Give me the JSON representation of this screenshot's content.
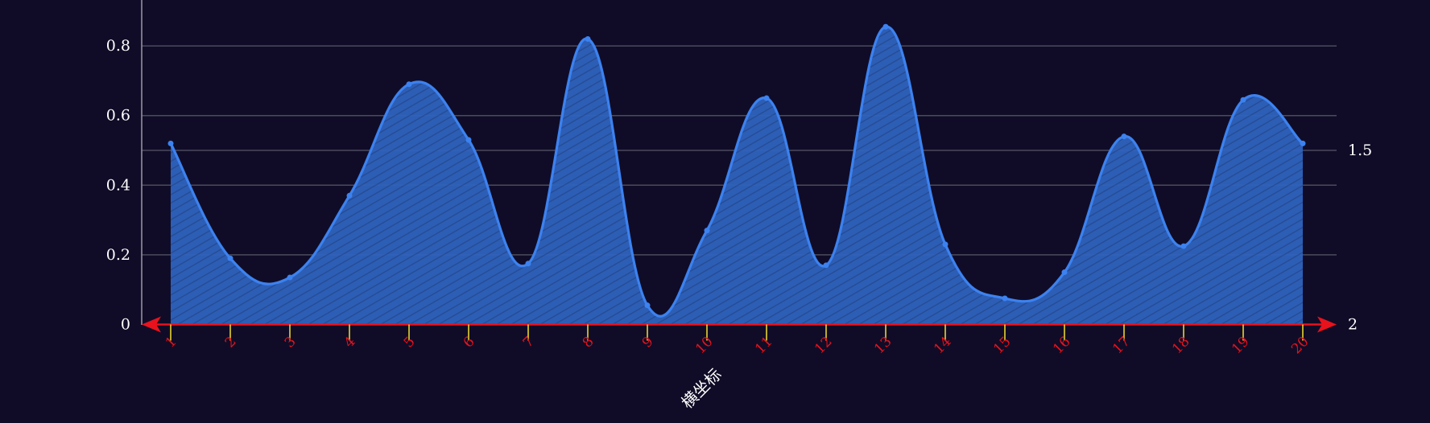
{
  "chart_data": {
    "type": "area",
    "smooth": true,
    "xlabel": "横坐标",
    "categories": [
      "1",
      "2",
      "3",
      "4",
      "5",
      "6",
      "7",
      "8",
      "9",
      "10",
      "11",
      "12",
      "13",
      "14",
      "15",
      "16",
      "17",
      "18",
      "19",
      "20"
    ],
    "series": [
      {
        "values": [
          0.52,
          0.19,
          0.135,
          0.37,
          0.69,
          0.53,
          0.175,
          0.82,
          0.055,
          0.27,
          0.65,
          0.17,
          0.855,
          0.23,
          0.075,
          0.15,
          0.54,
          0.225,
          0.645,
          0.52
        ]
      }
    ],
    "y_left": {
      "ticks": [
        "0",
        "0.2",
        "0.4",
        "0.6",
        "0.8"
      ],
      "ylim": [
        0,
        0.93
      ]
    },
    "y_right": {
      "ticks": [
        "1.5",
        "2"
      ],
      "ylim": [
        2,
        1.0
      ]
    },
    "grid": true,
    "colors": {
      "background": "#100c27",
      "series": "#3c82f0",
      "area_fill": "#2d5fb8",
      "x_axis": "#e8121d",
      "x_ticks": "#f2e030",
      "grid": "#4a4a5e"
    }
  }
}
